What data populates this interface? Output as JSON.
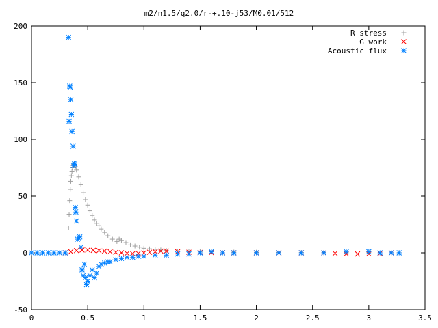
{
  "chart_data": {
    "type": "scatter",
    "title": "m2/n1.5/q2.0/r-+.10-j53/M0.01/512",
    "xlabel": "",
    "ylabel": "",
    "xlim": [
      0,
      3.5
    ],
    "ylim": [
      -50,
      200
    ],
    "x_ticks": [
      "0",
      "0.5",
      "1",
      "1.5",
      "2",
      "2.5",
      "3",
      "3.5"
    ],
    "y_ticks": [
      "200",
      "150",
      "100",
      "50",
      "0",
      "-50"
    ],
    "grid": false,
    "legend_position": "top-right",
    "series": [
      {
        "name": "R stress",
        "marker": "plus",
        "color": "#a0a0a0",
        "x": [
          0.33,
          0.335,
          0.34,
          0.345,
          0.35,
          0.355,
          0.36,
          0.365,
          0.37,
          0.375,
          0.38,
          0.39,
          0.4,
          0.42,
          0.44,
          0.46,
          0.48,
          0.5,
          0.52,
          0.54,
          0.56,
          0.58,
          0.6,
          0.62,
          0.65,
          0.68,
          0.72,
          0.76,
          0.78,
          0.8,
          0.84,
          0.88,
          0.92,
          0.96,
          1.0,
          1.05,
          1.1,
          1.15,
          1.2,
          1.3,
          1.4,
          1.5,
          1.6,
          1.8,
          2.0,
          2.2,
          2.4,
          2.6,
          2.8,
          3.0,
          3.2,
          3.27
        ],
        "y": [
          22,
          34,
          46,
          56,
          63,
          68,
          72,
          75,
          77,
          78,
          78,
          76,
          73,
          67,
          60,
          53,
          47,
          42,
          37,
          33,
          29,
          26,
          24,
          21,
          18,
          15,
          12,
          10,
          12,
          11,
          9,
          7,
          6,
          5,
          4,
          3.5,
          3,
          2.5,
          2,
          1.5,
          1.2,
          1,
          0.8,
          0.6,
          0.5,
          0.4,
          0.3,
          0.3,
          0.2,
          0.2,
          0.1,
          0.1
        ]
      },
      {
        "name": "G work",
        "marker": "cross",
        "color": "#ff0000",
        "x": [
          0.3,
          0.35,
          0.4,
          0.45,
          0.5,
          0.55,
          0.6,
          0.65,
          0.7,
          0.75,
          0.8,
          0.85,
          0.9,
          0.95,
          1.0,
          1.05,
          1.1,
          1.15,
          1.2,
          1.3,
          1.4,
          1.5,
          1.6,
          1.7,
          1.8,
          2.0,
          2.2,
          2.4,
          2.6,
          2.7,
          2.8,
          2.9,
          3.0,
          3.1,
          3.2
        ],
        "y": [
          0,
          1,
          2,
          2.5,
          2.5,
          2.2,
          2,
          1.5,
          1,
          0.5,
          0,
          -0.5,
          -0.8,
          -0.5,
          0,
          0.5,
          1,
          1.5,
          1.5,
          1,
          0.5,
          0.3,
          0.2,
          0.1,
          0,
          0,
          0,
          0,
          0,
          -0.5,
          -0.8,
          -1,
          -0.8,
          -0.5,
          0
        ]
      },
      {
        "name": "Acoustic flux",
        "marker": "star",
        "color": "#0080ff",
        "x": [
          0.0,
          0.05,
          0.1,
          0.15,
          0.2,
          0.25,
          0.3,
          0.33,
          0.335,
          0.34,
          0.345,
          0.35,
          0.355,
          0.36,
          0.37,
          0.375,
          0.38,
          0.385,
          0.39,
          0.395,
          0.4,
          0.41,
          0.42,
          0.43,
          0.44,
          0.45,
          0.46,
          0.47,
          0.48,
          0.49,
          0.5,
          0.52,
          0.54,
          0.56,
          0.58,
          0.6,
          0.62,
          0.65,
          0.68,
          0.7,
          0.75,
          0.8,
          0.85,
          0.9,
          0.95,
          1.0,
          1.1,
          1.2,
          1.3,
          1.4,
          1.5,
          1.6,
          1.7,
          1.8,
          2.0,
          2.2,
          2.4,
          2.6,
          2.8,
          3.0,
          3.1,
          3.2,
          3.27
        ],
        "y": [
          0,
          0,
          0,
          0,
          0,
          0,
          0,
          190,
          116,
          147,
          146,
          135,
          122,
          107,
          94,
          77,
          79,
          78,
          40,
          36,
          28,
          12,
          13,
          14,
          5,
          -15,
          -20,
          -10,
          -22,
          -28,
          -25,
          -20,
          -15,
          -22,
          -18,
          -12,
          -10,
          -9,
          -8,
          -8,
          -6,
          -5,
          -4,
          -4,
          -3,
          -3,
          -2,
          -2,
          -1,
          -1,
          0,
          1,
          0,
          0,
          0,
          0,
          0,
          0,
          1,
          1,
          0,
          0,
          0
        ]
      }
    ]
  }
}
